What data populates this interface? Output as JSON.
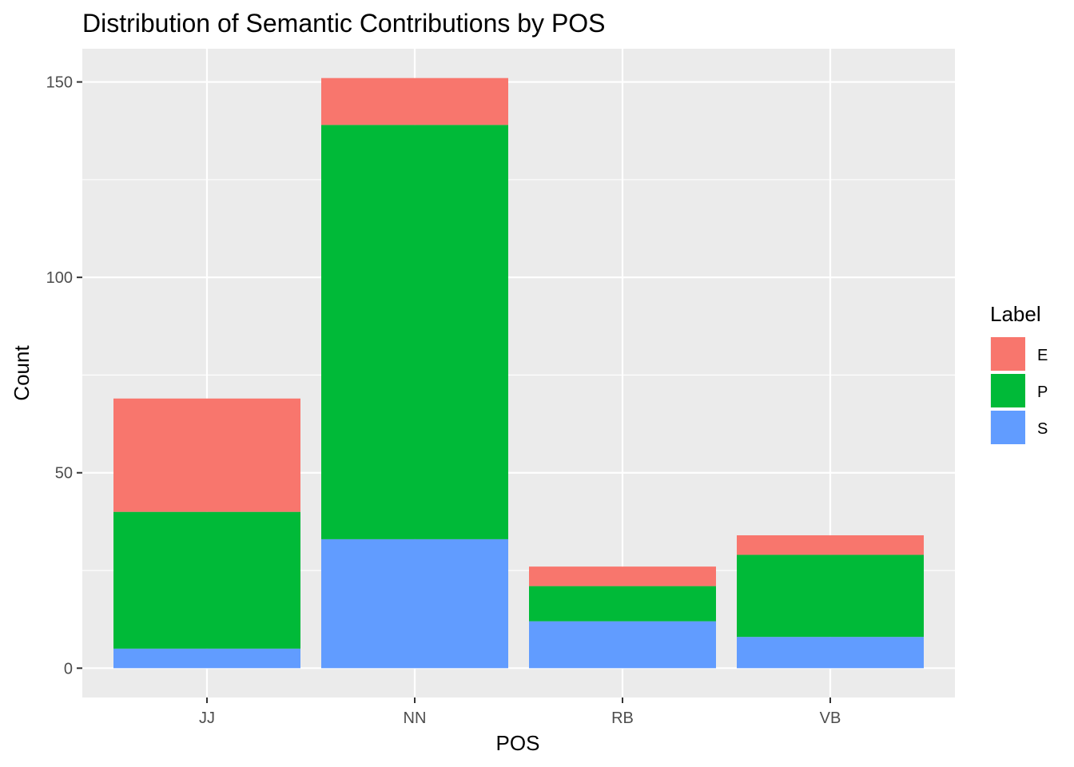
{
  "chart_data": {
    "type": "bar",
    "stacked": true,
    "title": "Distribution of Semantic Contributions by POS",
    "xlabel": "POS",
    "ylabel": "Count",
    "categories": [
      "JJ",
      "NN",
      "RB",
      "VB"
    ],
    "series": [
      {
        "name": "E",
        "color": "#F8766D",
        "values": [
          29,
          12,
          5,
          5
        ]
      },
      {
        "name": "P",
        "color": "#00BA38",
        "values": [
          35,
          106,
          9,
          21
        ]
      },
      {
        "name": "S",
        "color": "#619CFF",
        "values": [
          5,
          33,
          12,
          8
        ]
      }
    ],
    "ylim": [
      -7.5,
      158.5
    ],
    "yticks": [
      0,
      50,
      100,
      150
    ],
    "ytick_labels": [
      "0",
      "50",
      "100",
      "150"
    ],
    "grid": true,
    "legend": {
      "title": "Label",
      "position": "right"
    },
    "panel_background": "#EBEBEB",
    "grid_color": "#FFFFFF"
  }
}
